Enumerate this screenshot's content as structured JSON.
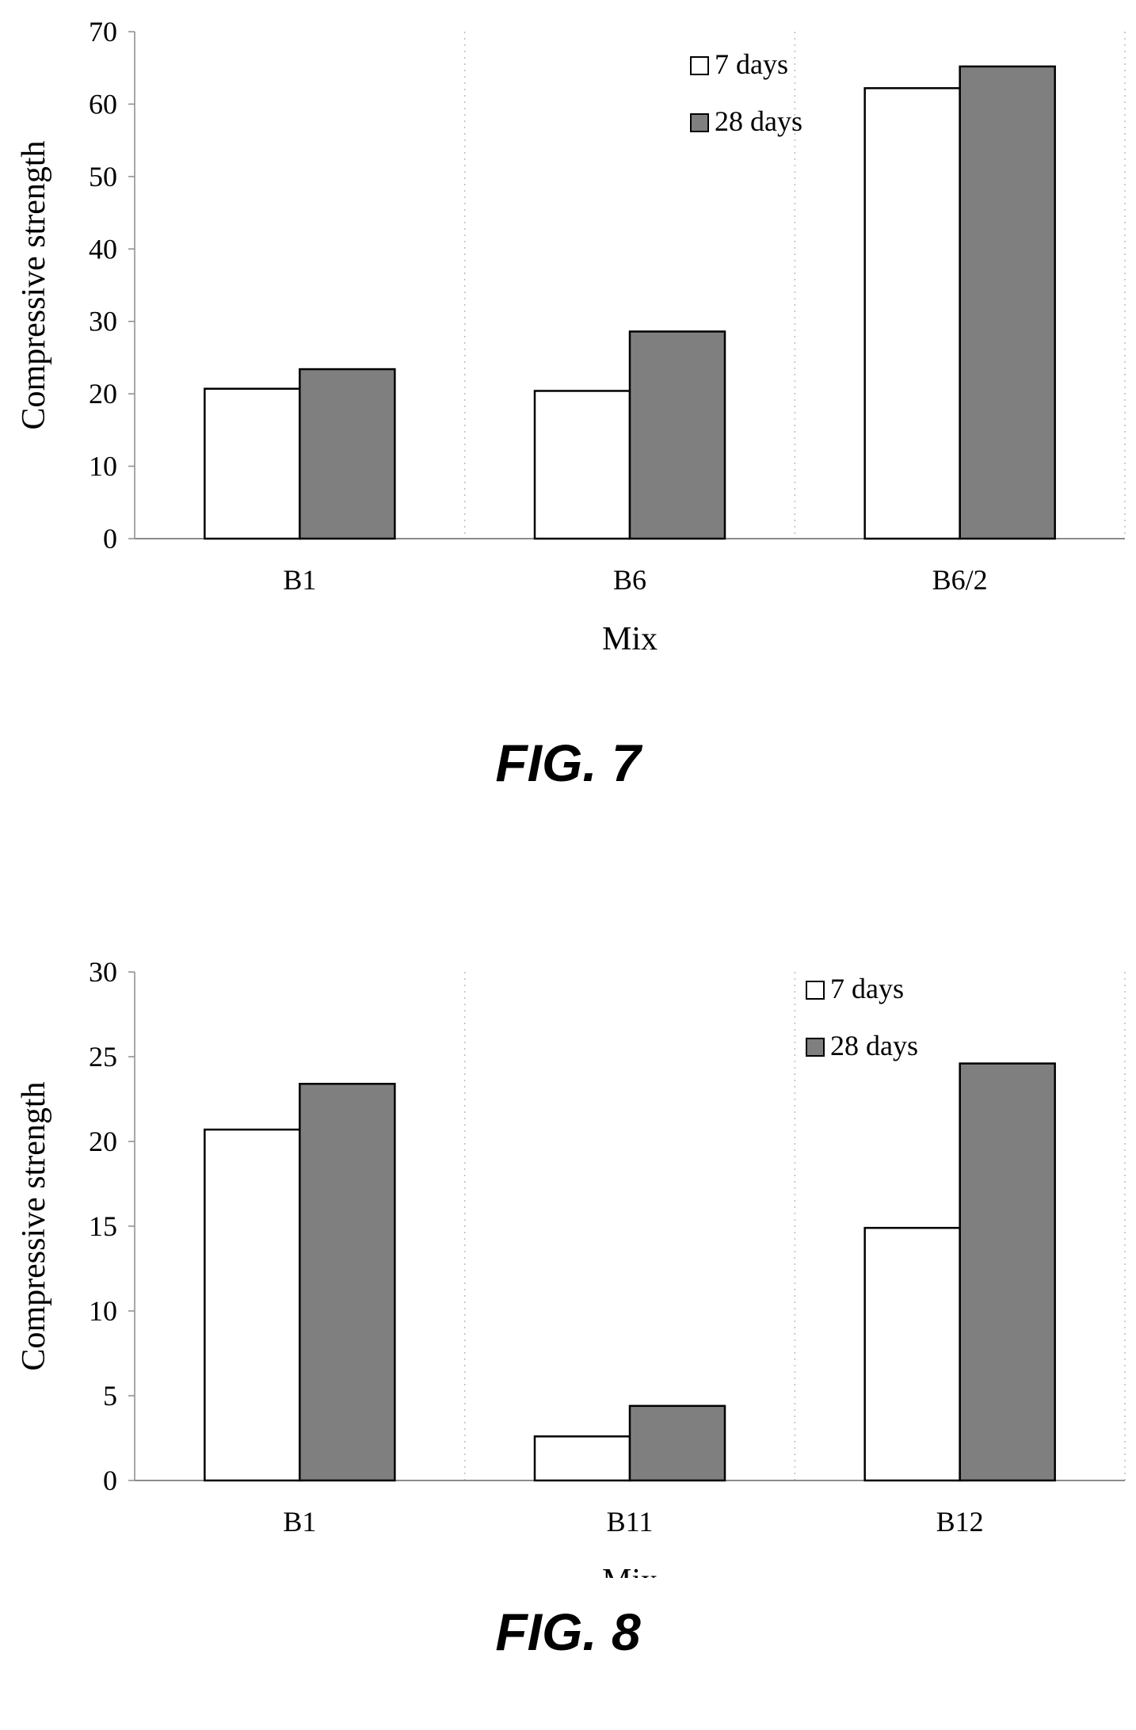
{
  "figures": [
    {
      "caption": "FIG. 7",
      "chart_data": {
        "type": "bar",
        "title": "",
        "xlabel": "Mix",
        "ylabel": "Compressive strength",
        "categories": [
          "B1",
          "B6",
          "B6/2"
        ],
        "series": [
          {
            "name": "7 days",
            "values": [
              20.7,
              20.4,
              62.2
            ],
            "color": "#ffffff"
          },
          {
            "name": "28 days",
            "values": [
              23.4,
              28.6,
              65.2
            ],
            "color": "#7f7f7f"
          }
        ],
        "ylim": [
          0,
          70
        ],
        "yticks": [
          0,
          10,
          20,
          30,
          40,
          50,
          60,
          70
        ],
        "grid": "vertical dotted category separators",
        "legend": "top-right"
      }
    },
    {
      "caption": "FIG. 8",
      "chart_data": {
        "type": "bar",
        "title": "",
        "xlabel": "Mix",
        "ylabel": "Compressive strength",
        "categories": [
          "B1",
          "B11",
          "B12"
        ],
        "series": [
          {
            "name": "7 days",
            "values": [
              20.7,
              2.6,
              14.9
            ],
            "color": "#ffffff"
          },
          {
            "name": "28 days",
            "values": [
              23.4,
              4.4,
              24.6
            ],
            "color": "#7f7f7f"
          }
        ],
        "ylim": [
          0,
          30
        ],
        "yticks": [
          0,
          5,
          10,
          15,
          20,
          25,
          30
        ],
        "grid": "vertical dotted category separators",
        "legend": "top-right"
      }
    }
  ]
}
